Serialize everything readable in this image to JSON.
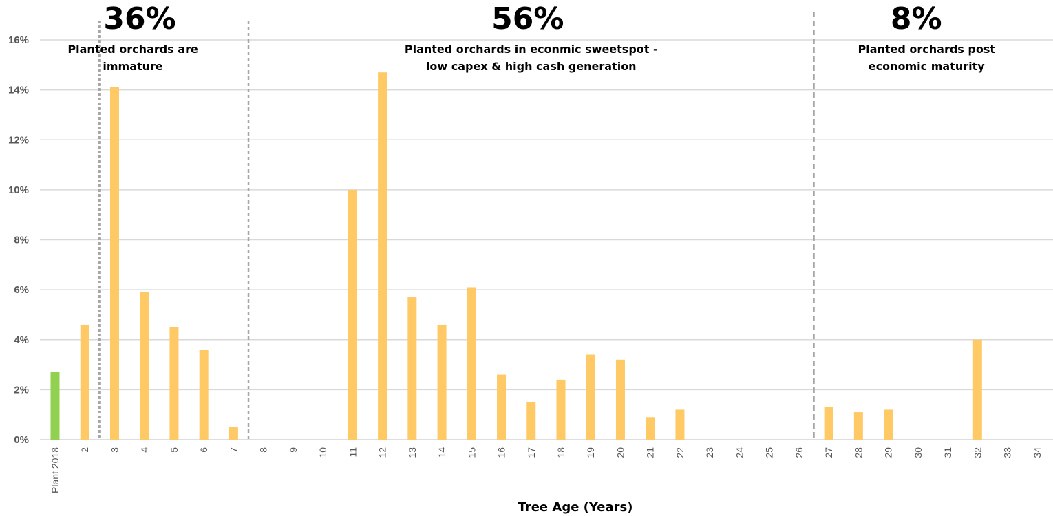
{
  "chart_data": {
    "type": "bar",
    "title": "",
    "xlabel": "Tree Age (Years)",
    "ylabel": "",
    "ylim": [
      0,
      16
    ],
    "y_ticks": [
      "0%",
      "2%",
      "4%",
      "6%",
      "8%",
      "10%",
      "12%",
      "14%",
      "16%"
    ],
    "y_tick_values": [
      0,
      2,
      4,
      6,
      8,
      10,
      12,
      14,
      16
    ],
    "grid": true,
    "categories": [
      "Plant 2018",
      "2",
      "3",
      "4",
      "5",
      "6",
      "7",
      "8",
      "9",
      "10",
      "11",
      "12",
      "13",
      "14",
      "15",
      "16",
      "17",
      "18",
      "19",
      "20",
      "21",
      "22",
      "23",
      "24",
      "25",
      "26",
      "27",
      "28",
      "29",
      "30",
      "31",
      "32",
      "33",
      "34"
    ],
    "values": [
      2.7,
      4.6,
      14.1,
      5.9,
      4.5,
      3.6,
      0.5,
      0,
      0,
      0,
      10.0,
      14.7,
      5.7,
      4.6,
      6.1,
      2.6,
      1.5,
      2.4,
      3.4,
      3.2,
      0.9,
      1.2,
      0,
      0,
      0,
      0,
      1.3,
      1.1,
      1.2,
      0,
      0,
      4.0,
      0,
      0
    ],
    "colors": {
      "highlight": "#92d050",
      "bar": "#ffc966",
      "grid": "#d9d9d9",
      "divider": "#a6a6a6"
    },
    "highlight_index": 0,
    "segments": [
      {
        "percent": "36%",
        "label_lines": [
          "Planted orchards are",
          "immature"
        ],
        "start_after": 1,
        "end_after": 6
      },
      {
        "percent": "56%",
        "label_lines": [
          "Planted orchards in econmic sweetspot -",
          "low capex & high cash generation"
        ],
        "start_after": 6,
        "end_after": 25
      },
      {
        "percent": "8%",
        "label_lines": [
          "Planted orchards post",
          "economic maturity"
        ],
        "start_after": 25,
        "end_after": 33
      }
    ],
    "dividers_after": [
      1,
      6,
      25
    ]
  }
}
